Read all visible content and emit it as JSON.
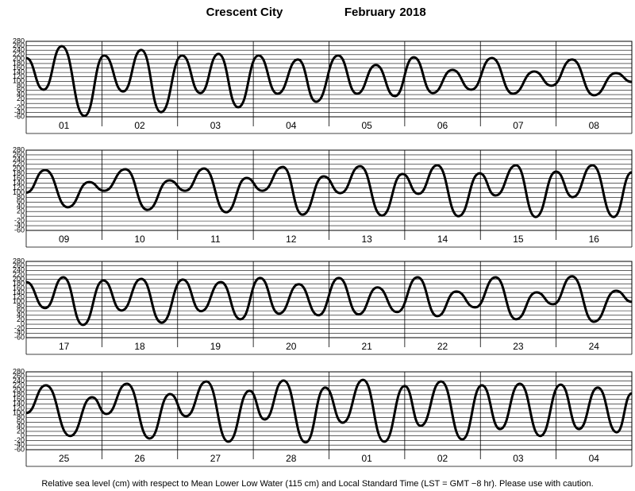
{
  "header": {
    "location": "Crescent City",
    "month": "February",
    "year": "2018"
  },
  "footer": "Relative sea level (cm) with respect to Mean Lower Low Water (115 cm) and Local Standard Time (LST = GMT −8 hr). Please use with caution.",
  "chart_data": [
    {
      "type": "line",
      "categories": [
        "01",
        "02",
        "03",
        "04",
        "05",
        "06",
        "07",
        "08"
      ],
      "x": [
        0,
        0.23,
        0.47,
        0.77,
        1.03,
        1.28,
        1.52,
        1.78,
        2.06,
        2.3,
        2.54,
        2.8,
        3.07,
        3.32,
        3.59,
        3.83,
        4.12,
        4.37,
        4.62,
        4.87,
        5.12,
        5.37,
        5.63,
        5.88,
        6.15,
        6.43,
        6.71,
        6.94,
        7.21,
        7.5,
        7.79,
        8
      ],
      "values": [
        205,
        62,
        258,
        -56,
        216,
        54,
        241,
        -39,
        216,
        47,
        223,
        -17,
        216,
        44,
        198,
        8,
        216,
        44,
        173,
        33,
        208,
        47,
        151,
        62,
        205,
        44,
        144,
        80,
        198,
        37,
        137,
        97
      ],
      "color": "#000000",
      "xlim": [
        0,
        8
      ],
      "ylim": [
        -60,
        280
      ],
      "yticks": [
        -60,
        -40,
        -20,
        0,
        20,
        40,
        60,
        80,
        100,
        120,
        140,
        160,
        180,
        200,
        220,
        240,
        260,
        280
      ],
      "grid": true
    },
    {
      "type": "line",
      "categories": [
        "09",
        "10",
        "11",
        "12",
        "13",
        "14",
        "15",
        "16"
      ],
      "x": [
        0,
        0.25,
        0.55,
        0.83,
        1.03,
        1.31,
        1.6,
        1.89,
        2.1,
        2.35,
        2.64,
        2.91,
        3.12,
        3.39,
        3.65,
        3.93,
        4.15,
        4.41,
        4.7,
        4.97,
        5.18,
        5.43,
        5.71,
        5.99,
        6.2,
        6.47,
        6.73,
        7.0,
        7.22,
        7.48,
        7.76,
        8
      ],
      "values": [
        100,
        196,
        38,
        145,
        108,
        199,
        27,
        152,
        108,
        202,
        17,
        162,
        108,
        209,
        7,
        169,
        98,
        212,
        3,
        179,
        95,
        216,
        0,
        182,
        88,
        216,
        -3,
        189,
        81,
        216,
        -3,
        186
      ],
      "color": "#000000",
      "xlim": [
        0,
        8
      ],
      "ylim": [
        -60,
        280
      ],
      "yticks": [
        -60,
        -40,
        -20,
        0,
        20,
        40,
        60,
        80,
        100,
        120,
        140,
        160,
        180,
        200,
        220,
        240,
        260,
        280
      ],
      "grid": true
    },
    {
      "type": "line",
      "categories": [
        "17",
        "18",
        "19",
        "20",
        "21",
        "22",
        "23",
        "24"
      ],
      "x": [
        0,
        0.25,
        0.49,
        0.75,
        1.02,
        1.26,
        1.52,
        1.79,
        2.07,
        2.31,
        2.57,
        2.83,
        3.09,
        3.34,
        3.6,
        3.86,
        4.13,
        4.39,
        4.64,
        4.9,
        5.17,
        5.43,
        5.68,
        5.93,
        6.2,
        6.47,
        6.74,
        6.96,
        7.21,
        7.5,
        7.79,
        8
      ],
      "values": [
        188,
        72,
        209,
        -3,
        195,
        61,
        202,
        7,
        199,
        58,
        188,
        22,
        206,
        47,
        178,
        40,
        206,
        44,
        164,
        54,
        209,
        36,
        146,
        75,
        209,
        22,
        142,
        89,
        213,
        11,
        149,
        100
      ],
      "color": "#000000",
      "xlim": [
        0,
        8
      ],
      "ylim": [
        -60,
        280
      ],
      "yticks": [
        -60,
        -40,
        -20,
        0,
        20,
        40,
        60,
        80,
        100,
        120,
        140,
        160,
        180,
        200,
        220,
        240,
        260,
        280
      ],
      "grid": true
    },
    {
      "type": "line",
      "categories": [
        "25",
        "26",
        "27",
        "28",
        "01",
        "02",
        "03",
        "04"
      ],
      "x": [
        0,
        0.26,
        0.58,
        0.87,
        1.06,
        1.33,
        1.63,
        1.9,
        2.11,
        2.38,
        2.67,
        2.95,
        3.15,
        3.4,
        3.69,
        3.95,
        4.18,
        4.45,
        4.73,
        5.0,
        5.21,
        5.48,
        5.76,
        6.02,
        6.26,
        6.52,
        6.79,
        7.06,
        7.3,
        7.55,
        7.8,
        8
      ],
      "values": [
        100,
        221,
        0,
        169,
        96,
        228,
        -11,
        183,
        86,
        238,
        -25,
        197,
        72,
        242,
        -28,
        211,
        58,
        245,
        -25,
        218,
        44,
        238,
        -15,
        221,
        30,
        228,
        0,
        224,
        30,
        211,
        16,
        186
      ],
      "color": "#000000",
      "xlim": [
        0,
        8
      ],
      "ylim": [
        -60,
        280
      ],
      "yticks": [
        -60,
        -40,
        -20,
        0,
        20,
        40,
        60,
        80,
        100,
        120,
        140,
        160,
        180,
        200,
        220,
        240,
        260,
        280
      ],
      "grid": true
    }
  ]
}
